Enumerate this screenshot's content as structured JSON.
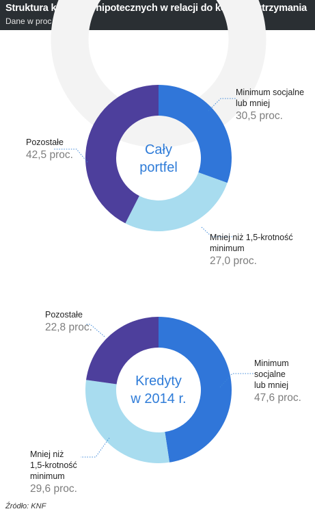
{
  "header": {
    "title": "Struktura kredytów hipotecznych w relacji do kosztów utrzymania",
    "subtitle": "Dane w proc."
  },
  "source": "Źródło: KNF",
  "colors": {
    "minimum": "#3076d9",
    "mniej": "#a8dcef",
    "pozostale": "#4d3f9c",
    "header_bg": "#2a2f33",
    "center_text": "#2f7cd8"
  },
  "chart_data": [
    {
      "type": "pie",
      "center_label": [
        "Cały",
        "portfel"
      ],
      "slices": [
        {
          "key": "minimum",
          "label_lines": [
            "Minimum socjalne",
            "lub mniej"
          ],
          "value_text": "30,5 proc.",
          "value": 30.5
        },
        {
          "key": "mniej",
          "label_lines": [
            "Mniej niż 1,5-krotność",
            "minimum"
          ],
          "value_text": "27,0 proc.",
          "value": 27.0
        },
        {
          "key": "pozostale",
          "label_lines": [
            "Pozostałe"
          ],
          "value_text": "42,5 proc.",
          "value": 42.5
        }
      ]
    },
    {
      "type": "pie",
      "center_label": [
        "Kredyty",
        "w 2014 r."
      ],
      "slices": [
        {
          "key": "minimum",
          "label_lines": [
            "Minimum",
            "socjalne",
            "lub mniej"
          ],
          "value_text": "47,6 proc.",
          "value": 47.6
        },
        {
          "key": "mniej",
          "label_lines": [
            "Mniej niż",
            "1,5-krotność",
            "minimum"
          ],
          "value_text": "29,6 proc.",
          "value": 29.6
        },
        {
          "key": "pozostale",
          "label_lines": [
            "Pozostałe"
          ],
          "value_text": "22,8 proc.",
          "value": 22.8
        }
      ]
    }
  ]
}
